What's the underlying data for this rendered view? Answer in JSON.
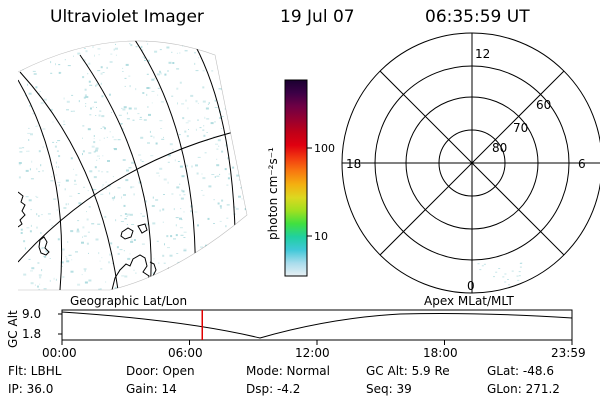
{
  "header": {
    "title": "Ultraviolet Imager",
    "date": "19 Jul 07",
    "time": "06:35:59 UT"
  },
  "left_panel": {
    "caption": "Geographic Lat/Lon",
    "colors": {
      "noise": "#9ed4d8",
      "grid": "#000000",
      "coast": "#000000"
    }
  },
  "colorbar": {
    "unit_label": "photon cm⁻²s⁻¹",
    "ticks": [
      "100",
      "10"
    ],
    "scale": "log",
    "stops": [
      "#1a0030",
      "#3c0046",
      "#6e0045",
      "#960030",
      "#c00018",
      "#e00010",
      "#f23c10",
      "#f87a10",
      "#f4b010",
      "#dcd820",
      "#a0e020",
      "#40e040",
      "#20d0a0",
      "#40c8d8",
      "#a8dcec",
      "#e8f0f4"
    ]
  },
  "right_panel": {
    "caption": "Apex  MLat/MLT",
    "mlt_labels": {
      "top": "12",
      "right": "6",
      "bottom": "0",
      "left": "18"
    },
    "lat_labels": [
      "60",
      "70",
      "80"
    ]
  },
  "gc_plot": {
    "ylabel": "GC Alt",
    "y_ticks": [
      "9.0",
      "1.8"
    ],
    "x_ticks": [
      "00:00",
      "06:00",
      "12:00",
      "18:00",
      "23:59"
    ],
    "marker_time_hours": 6.6,
    "marker_color": "#e00000"
  },
  "info": {
    "flt": "Flt: LBHL",
    "ip": "IP: 36.0",
    "door": "Door: Open",
    "gain": "Gain: 14",
    "mode": "Mode: Normal",
    "dsp": "Dsp:    -4.2",
    "gc_alt": "GC Alt: 5.9 Re",
    "seq": "Seq: 39",
    "glat": "GLat: -48.6",
    "glon": "GLon: 271.2"
  }
}
